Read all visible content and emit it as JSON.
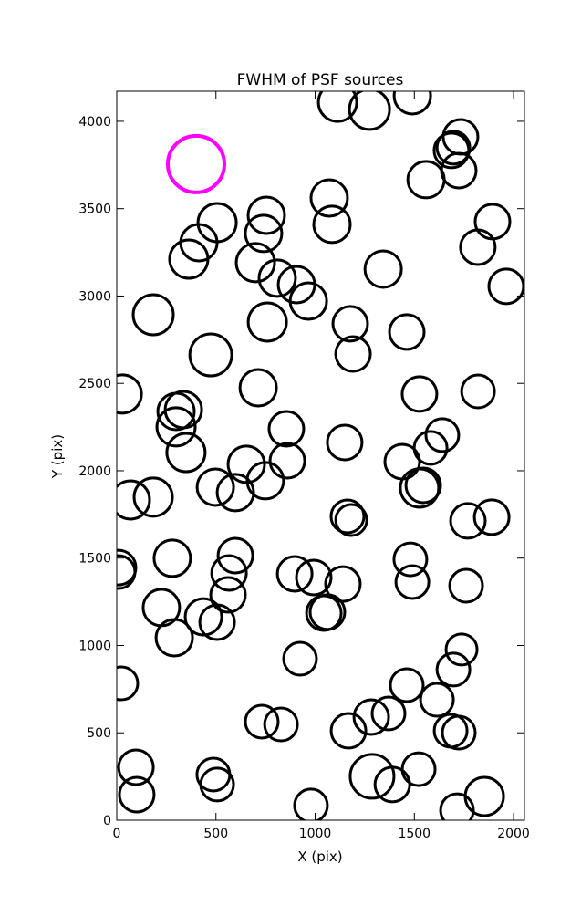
{
  "chart_data": {
    "type": "scatter",
    "title": "FWHM of PSF sources",
    "x_label": "X (pix)",
    "y_label": "Y (pix)",
    "xlim": [
      0,
      2055
    ],
    "ylim": [
      0,
      4172
    ],
    "xticks": [
      0,
      500,
      1000,
      1500,
      2000
    ],
    "yticks": [
      0,
      500,
      1000,
      1500,
      2000,
      2500,
      3000,
      3500,
      4000
    ],
    "grid": false,
    "series": [
      {
        "color": "#000000",
        "x": [
          1113,
          1274,
          1490,
          1733,
          1697,
          1687,
          1724,
          1559,
          1894,
          1820,
          1963,
          1343,
          1071,
          1085,
          754,
          740,
          506,
          414,
          363,
          699,
          809,
          906,
          966,
          759,
          184,
          474,
          1177,
          1191,
          1462,
          28,
          713,
          1526,
          1821,
          299,
          336,
          299,
          349,
          855,
          1641,
          1582,
          1149,
          860,
          653,
          1439,
          497,
          598,
          749,
          1526,
          1545,
          69,
          184,
          1163,
          1182,
          1770,
          1890,
          9,
          9,
          280,
          598,
          566,
          561,
          897,
          993,
          1140,
          1480,
          1490,
          1761,
          225,
          437,
          506,
          1044,
          1062,
          290,
          924,
          1738,
          1697,
          23,
          1462,
          1614,
          731,
          828,
          1283,
          1168,
          1370,
          1683,
          1724,
          97,
          101,
          487,
          506,
          1287,
          1389,
          1522,
          979,
          1715,
          1853
        ],
        "values": [
          4109,
          4068,
          4146,
          3911,
          3849,
          3833,
          3718,
          3666,
          3426,
          3279,
          3055,
          3154,
          3561,
          3410,
          3462,
          3358,
          3420,
          3305,
          3211,
          3191,
          3102,
          3065,
          2971,
          2851,
          2893,
          2663,
          2841,
          2668,
          2794,
          2439,
          2475,
          2439,
          2454,
          2339,
          2350,
          2251,
          2104,
          2240,
          2204,
          2131,
          2162,
          2057,
          2037,
          2052,
          1906,
          1875,
          1943,
          1901,
          1916,
          1833,
          1849,
          1739,
          1718,
          1713,
          1734,
          1446,
          1420,
          1499,
          1514,
          1415,
          1290,
          1410,
          1389,
          1352,
          1493,
          1363,
          1342,
          1217,
          1164,
          1133,
          1185,
          1191,
          1044,
          924,
          977,
          862,
          783,
          773,
          689,
          564,
          548,
          590,
          512,
          611,
          512,
          501,
          303,
          146,
          261,
          204,
          251,
          204,
          292,
          84,
          57,
          136
        ],
        "sizes": [
          21,
          22,
          20,
          19,
          18,
          19,
          19,
          20,
          19,
          19,
          19,
          20,
          20,
          20,
          20,
          20,
          21,
          20,
          21,
          21,
          20,
          20,
          20,
          21,
          22,
          23,
          19,
          19,
          19,
          21,
          20,
          19,
          18,
          20,
          20,
          21,
          21,
          19,
          18,
          18,
          19,
          19,
          20,
          19,
          20,
          20,
          20,
          21,
          19,
          21,
          21,
          18,
          17,
          19,
          19,
          19,
          18,
          20,
          19,
          19,
          19,
          19,
          19,
          19,
          18,
          18,
          18,
          20,
          20,
          19,
          19,
          19,
          20,
          18,
          17,
          18,
          18,
          18,
          18,
          18,
          18,
          19,
          19,
          18,
          18,
          18,
          19,
          19,
          18,
          18,
          24,
          19,
          18,
          18,
          18,
          21
        ],
        "stroke_width": 3
      },
      {
        "color": "#ff00ff",
        "x": [
          400
        ],
        "values": [
          3755
        ],
        "sizes": [
          31
        ],
        "stroke_width": 4
      }
    ]
  }
}
